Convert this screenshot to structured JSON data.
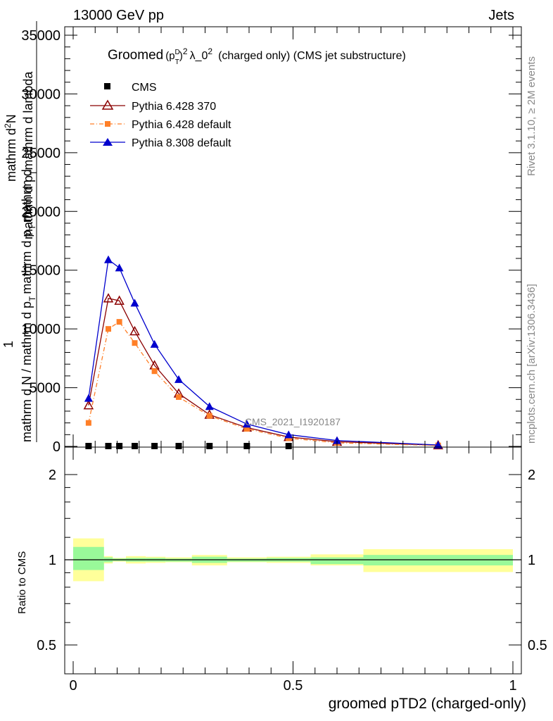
{
  "header": {
    "left_label": "13000 GeV pp",
    "right_label": "Jets"
  },
  "side_text": {
    "rivet": "Rivet 3.1.10, ≥ 2M events",
    "mcplots": "mcplots.cern.ch [arXiv:1306.3436]"
  },
  "watermark": "CMS_2021_I1920187",
  "chart_data": {
    "type": "line",
    "title": {
      "prefix": "Groomed",
      "pt": "p",
      "pt_sup": "D",
      "pt_sub": "T",
      "pt_power": "2",
      "lambda": "λ_0",
      "lambda_power": "2",
      "rest": "(charged only) (CMS jet substructure)"
    },
    "ylabel": {
      "line1": "mathrm d",
      "line1_sup": "2",
      "line1_end": "N",
      "line2": "mathrm d p",
      "line2_sub": "T",
      "line2_end": "mathrm d lambda",
      "one": "1",
      "den_a": "mathrm d N / mathrm d p",
      "den_sub": "T",
      "den_b": "mathrm d p",
      "den_sub2": "T",
      "den_c": "mathrm d"
    },
    "xlabel": "groomed pTD2 (charged-only)",
    "ratio_ylabel": "Ratio to CMS",
    "xlim": [
      0,
      1
    ],
    "ylim": [
      0,
      35000
    ],
    "ratio_ylim": [
      0.4,
      2.3
    ],
    "x_ticks": [
      "0",
      "0.5",
      "1"
    ],
    "y_ticks": [
      "0",
      "5000",
      "10000",
      "15000",
      "20000",
      "25000",
      "30000",
      "35000"
    ],
    "ratio_ticks": [
      "0.5",
      "1",
      "2"
    ],
    "legend": [
      "CMS",
      "Pythia 6.428 370",
      "Pythia 6.428 default",
      "Pythia 8.308 default"
    ],
    "colors": {
      "data": "#000000",
      "p6_370": "#8b0000",
      "p6_default": "#ff7f27",
      "p8": "#0000cd",
      "band_yellow": "#ffff9a",
      "band_green": "#99f999"
    },
    "cms": {
      "x": [
        0.035,
        0.08,
        0.105,
        0.14,
        0.185,
        0.24,
        0.31,
        0.395,
        0.49
      ],
      "y": [
        0,
        0,
        0,
        0,
        0,
        0,
        0,
        0,
        0
      ]
    },
    "series": [
      {
        "name": "Pythia 6.428 370",
        "x": [
          0.035,
          0.08,
          0.105,
          0.14,
          0.185,
          0.24,
          0.31,
          0.395,
          0.49,
          0.6,
          0.83
        ],
        "y": [
          3500,
          12600,
          12400,
          9800,
          6900,
          4500,
          2700,
          1600,
          800,
          400,
          100
        ]
      },
      {
        "name": "Pythia 6.428 default",
        "x": [
          0.035,
          0.08,
          0.105,
          0.14,
          0.185,
          0.24,
          0.31,
          0.395,
          0.49,
          0.6,
          0.83
        ],
        "y": [
          2000,
          10000,
          10600,
          8800,
          6400,
          4200,
          2600,
          1500,
          700,
          300,
          80
        ]
      },
      {
        "name": "Pythia 8.308 default",
        "x": [
          0.035,
          0.08,
          0.105,
          0.14,
          0.185,
          0.24,
          0.31,
          0.395,
          0.49,
          0.6,
          0.83
        ],
        "y": [
          4100,
          15900,
          15200,
          12200,
          8700,
          5700,
          3400,
          1900,
          1000,
          500,
          120
        ]
      }
    ],
    "ratio_bands": [
      {
        "x0": 0.0,
        "x1": 0.07,
        "green": [
          0.92,
          1.11
        ],
        "yellow": [
          0.84,
          1.19
        ]
      },
      {
        "x0": 0.07,
        "x1": 0.09,
        "green": [
          0.98,
          1.02
        ],
        "yellow": [
          0.97,
          1.03
        ]
      },
      {
        "x0": 0.09,
        "x1": 0.12,
        "green": [
          0.99,
          1.01
        ],
        "yellow": [
          0.985,
          1.015
        ]
      },
      {
        "x0": 0.12,
        "x1": 0.165,
        "green": [
          0.985,
          1.015
        ],
        "yellow": [
          0.97,
          1.03
        ]
      },
      {
        "x0": 0.165,
        "x1": 0.21,
        "green": [
          0.985,
          1.015
        ],
        "yellow": [
          0.975,
          1.025
        ]
      },
      {
        "x0": 0.21,
        "x1": 0.27,
        "green": [
          0.985,
          1.01
        ],
        "yellow": [
          0.98,
          1.02
        ]
      },
      {
        "x0": 0.27,
        "x1": 0.35,
        "green": [
          0.975,
          1.025
        ],
        "yellow": [
          0.955,
          1.04
        ]
      },
      {
        "x0": 0.35,
        "x1": 0.44,
        "green": [
          0.985,
          1.01
        ],
        "yellow": [
          0.98,
          1.02
        ]
      },
      {
        "x0": 0.44,
        "x1": 0.54,
        "green": [
          0.985,
          1.015
        ],
        "yellow": [
          0.975,
          1.025
        ]
      },
      {
        "x0": 0.54,
        "x1": 0.66,
        "green": [
          0.965,
          1.02
        ],
        "yellow": [
          0.955,
          1.045
        ]
      },
      {
        "x0": 0.66,
        "x1": 1.0,
        "green": [
          0.955,
          1.04
        ],
        "yellow": [
          0.905,
          1.09
        ]
      }
    ]
  }
}
